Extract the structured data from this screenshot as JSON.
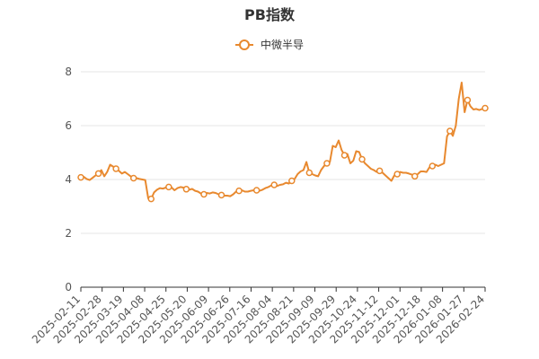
{
  "chart_data": {
    "type": "line",
    "title": "PB指数",
    "legend": "top-center",
    "color": "#E8892F",
    "ylim": [
      0,
      8
    ],
    "yticks": [
      0,
      2,
      4,
      6,
      8
    ],
    "grid": true,
    "x_ticks": [
      "2025-02-11",
      "2025-02-28",
      "2025-03-19",
      "2025-04-08",
      "2025-04-25",
      "2025-05-20",
      "2025-06-09",
      "2025-06-26",
      "2025-07-16",
      "2025-08-04",
      "2025-08-21",
      "2025-09-09",
      "2025-09-29",
      "2025-10-24",
      "2025-11-12",
      "2025-12-01",
      "2025-12-18",
      "2026-01-08",
      "2026-01-27",
      "2026-02-24"
    ],
    "series": [
      {
        "name": "中微半导",
        "values": [
          4.08,
          4.1,
          4.02,
          3.98,
          4.06,
          4.15,
          4.22,
          4.35,
          4.12,
          4.28,
          4.55,
          4.48,
          4.4,
          4.32,
          4.22,
          4.28,
          4.2,
          4.12,
          4.05,
          4.05,
          4.02,
          4.0,
          3.98,
          3.3,
          3.28,
          3.52,
          3.62,
          3.68,
          3.66,
          3.7,
          3.72,
          3.7,
          3.6,
          3.68,
          3.72,
          3.7,
          3.64,
          3.62,
          3.65,
          3.58,
          3.55,
          3.48,
          3.45,
          3.5,
          3.48,
          3.52,
          3.5,
          3.45,
          3.42,
          3.4,
          3.4,
          3.38,
          3.45,
          3.55,
          3.58,
          3.6,
          3.55,
          3.55,
          3.58,
          3.6,
          3.6,
          3.58,
          3.62,
          3.68,
          3.72,
          3.78,
          3.8,
          3.76,
          3.8,
          3.82,
          3.88,
          3.85,
          3.95,
          4.02,
          4.2,
          4.3,
          4.35,
          4.65,
          4.25,
          4.2,
          4.15,
          4.12,
          4.35,
          4.5,
          4.6,
          4.65,
          5.25,
          5.2,
          5.45,
          5.1,
          4.9,
          4.95,
          4.6,
          4.7,
          5.05,
          5.02,
          4.75,
          4.6,
          4.5,
          4.4,
          4.35,
          4.28,
          4.32,
          4.25,
          4.15,
          4.05,
          3.95,
          4.15,
          4.2,
          4.28,
          4.25,
          4.25,
          4.22,
          4.18,
          4.12,
          4.2,
          4.3,
          4.3,
          4.28,
          4.45,
          4.5,
          4.55,
          4.5,
          4.55,
          4.6,
          5.6,
          5.8,
          5.62,
          6.0,
          7.0,
          7.6,
          6.5,
          6.95,
          6.72,
          6.6,
          6.62,
          6.58,
          6.62,
          6.65
        ],
        "marker_every": 6
      }
    ]
  }
}
